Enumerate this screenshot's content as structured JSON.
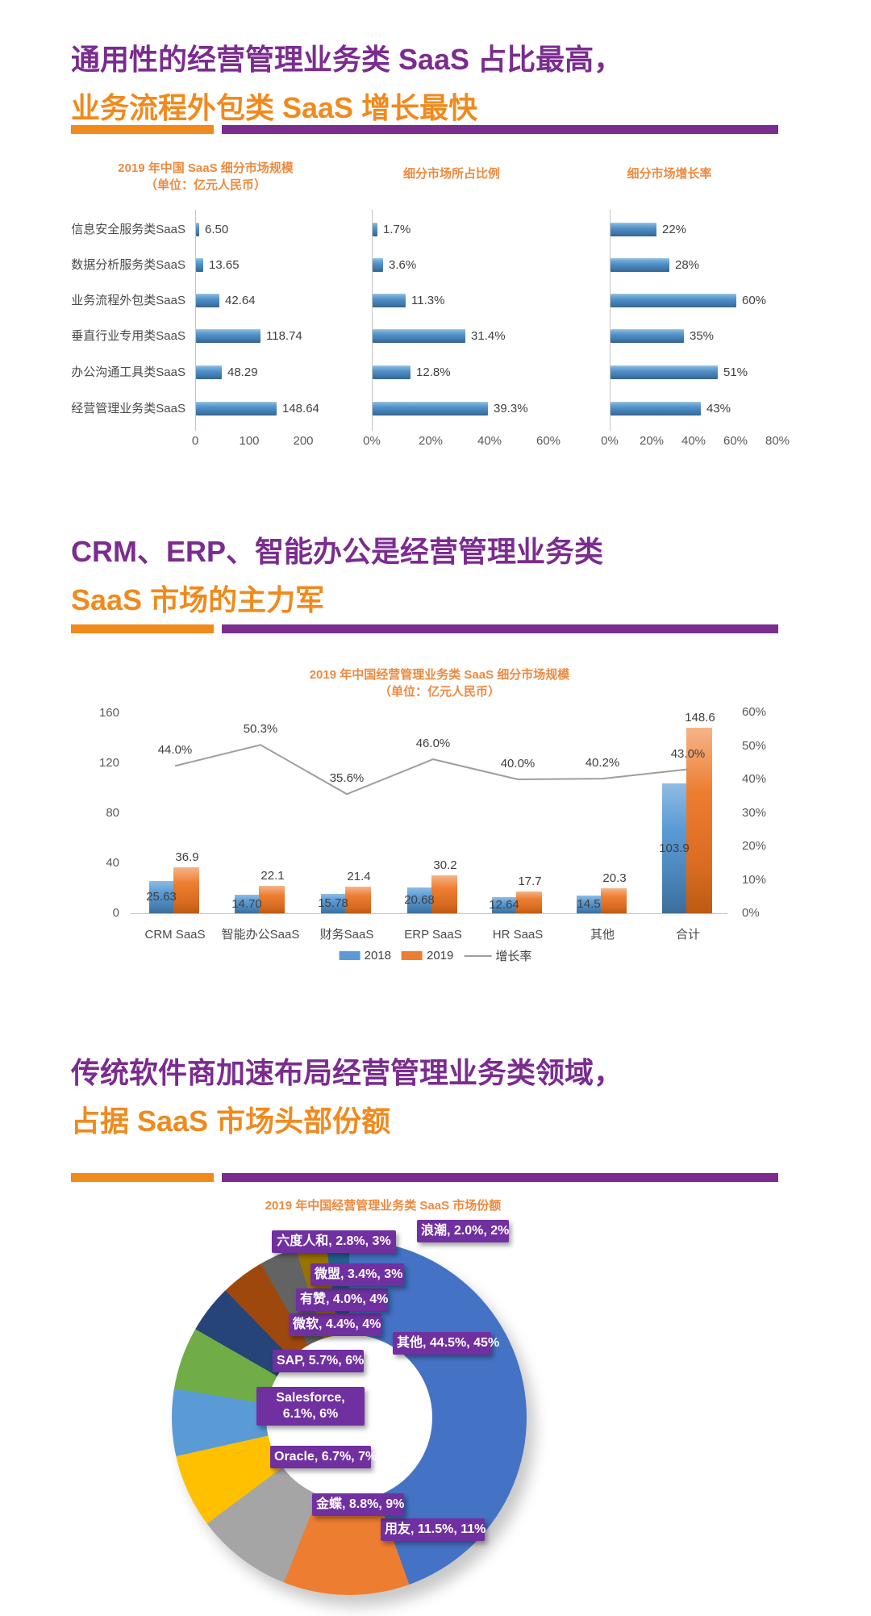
{
  "s1": {
    "title1": "通用性的经营管理业务类 SaaS 占比最高，",
    "title2": "业务流程外包类 SaaS 增长最快"
  },
  "s2": {
    "title1": "CRM、ERP、智能办公是经营管理业务类",
    "title2": "SaaS 市场的主力军"
  },
  "s3": {
    "title1": "传统软件商加速布局经营管理业务类领域，",
    "title2": "占据 SaaS 市场头部份额"
  },
  "colors": {
    "title_purple": "#7B2C8F",
    "title_orange": "#F08A1D",
    "chart_title_orange": "#ED8A3F",
    "bar_blue": "#4E8DC6",
    "bar_2018": "#5B9BD5",
    "bar_2019": "#ED7D31",
    "growth_line": "#9E9E9E",
    "pie_label_purple": "#7030A0"
  },
  "chart_data": [
    {
      "type": "bar",
      "orientation": "horizontal",
      "title": "2019 年中国 SaaS 细分市场规模",
      "subtitle": "（单位：亿元人民币）",
      "categories": [
        "信息安全服务类SaaS",
        "数据分析服务类SaaS",
        "业务流程外包类SaaS",
        "垂直行业专用类SaaS",
        "办公沟通工具类SaaS",
        "经营管理业务类SaaS"
      ],
      "values": [
        6.5,
        13.65,
        42.64,
        118.74,
        48.29,
        148.64
      ],
      "labels": [
        "6.50",
        "13.65",
        "42.64",
        "118.74",
        "48.29",
        "148.64"
      ],
      "xticks": [
        "0",
        "100",
        "200"
      ],
      "xlim": [
        0,
        210
      ],
      "grid": false
    },
    {
      "type": "bar",
      "orientation": "horizontal",
      "title": "细分市场所占比例",
      "values": [
        1.7,
        3.6,
        11.3,
        31.4,
        12.8,
        39.3
      ],
      "labels": [
        "1.7%",
        "3.6%",
        "11.3%",
        "31.4%",
        "12.8%",
        "39.3%"
      ],
      "xticks": [
        "0%",
        "20%",
        "40%",
        "60%"
      ],
      "xlim": [
        0,
        60
      ],
      "grid": false
    },
    {
      "type": "bar",
      "orientation": "horizontal",
      "title": "细分市场增长率",
      "values": [
        22,
        28,
        60,
        35,
        51,
        43
      ],
      "labels": [
        "22%",
        "28%",
        "60%",
        "35%",
        "51%",
        "43%"
      ],
      "xticks": [
        "0%",
        "20%",
        "40%",
        "60%",
        "80%"
      ],
      "xlim": [
        0,
        80
      ],
      "grid": false
    },
    {
      "type": "combo",
      "title": "2019 年中国经营管理业务类 SaaS 细分市场规模",
      "subtitle": "（单位：亿元人民币）",
      "categories": [
        "CRM SaaS",
        "智能办公SaaS",
        "财务SaaS",
        "ERP SaaS",
        "HR SaaS",
        "其他",
        "合计"
      ],
      "series": [
        {
          "name": "2018",
          "kind": "bar",
          "color": "#5B9BD5",
          "values": [
            25.63,
            14.7,
            15.78,
            20.68,
            12.64,
            14.5,
            103.9
          ],
          "labels": [
            "25.63",
            "14.70",
            "15.78",
            "20.68",
            "12.64",
            "14.5",
            "103.9"
          ]
        },
        {
          "name": "2019",
          "kind": "bar",
          "color": "#ED7D31",
          "values": [
            36.9,
            22.1,
            21.4,
            30.2,
            17.7,
            20.3,
            148.6
          ],
          "labels": [
            "36.9",
            "22.1",
            "21.4",
            "30.2",
            "17.7",
            "20.3",
            "148.6"
          ]
        },
        {
          "name": "增长率",
          "kind": "line",
          "color": "#9E9E9E",
          "values": [
            44.0,
            50.3,
            35.6,
            46.0,
            40.0,
            40.2,
            43.0
          ],
          "labels": [
            "44.0%",
            "50.3%",
            "35.6%",
            "46.0%",
            "40.0%",
            "40.2%",
            "43.0%"
          ]
        }
      ],
      "yticks_left": [
        "0",
        "40",
        "80",
        "120",
        "160"
      ],
      "ylim_left": [
        0,
        160
      ],
      "yticks_right": [
        "0%",
        "10%",
        "20%",
        "30%",
        "40%",
        "50%",
        "60%"
      ],
      "ylim_right": [
        0,
        60
      ],
      "legend_position": "bottom",
      "grid": false
    },
    {
      "type": "pie",
      "donut": true,
      "title": "2019 年中国经营管理业务类 SaaS 市场份额",
      "slices": [
        {
          "name": "其他",
          "share": "44.5%",
          "rounded": "45%",
          "value": 44.5,
          "color": "#4472C4"
        },
        {
          "name": "用友",
          "share": "11.5%",
          "rounded": "11%",
          "value": 11.5,
          "color": "#ED7D31"
        },
        {
          "name": "金蝶",
          "share": "8.8%",
          "rounded": "9%",
          "value": 8.8,
          "color": "#A5A5A5"
        },
        {
          "name": "Oracle",
          "share": "6.7%",
          "rounded": "7%",
          "value": 6.7,
          "color": "#FFC000"
        },
        {
          "name": "Salesforce",
          "share": "6.1%",
          "rounded": "6%",
          "value": 6.1,
          "color": "#5B9BD5"
        },
        {
          "name": "SAP",
          "share": "5.7%",
          "rounded": "6%",
          "value": 5.7,
          "color": "#70AD47"
        },
        {
          "name": "微软",
          "share": "4.4%",
          "rounded": "4%",
          "value": 4.4,
          "color": "#264478"
        },
        {
          "name": "有赞",
          "share": "4.0%",
          "rounded": "4%",
          "value": 4.0,
          "color": "#9E480E"
        },
        {
          "name": "微盟",
          "share": "3.4%",
          "rounded": "3%",
          "value": 3.4,
          "color": "#636363"
        },
        {
          "name": "六度人和",
          "share": "2.8%",
          "rounded": "3%",
          "value": 2.8,
          "color": "#997300"
        },
        {
          "name": "浪潮",
          "share": "2.0%",
          "rounded": "2%",
          "value": 2.0,
          "color": "#255E91"
        }
      ]
    }
  ]
}
